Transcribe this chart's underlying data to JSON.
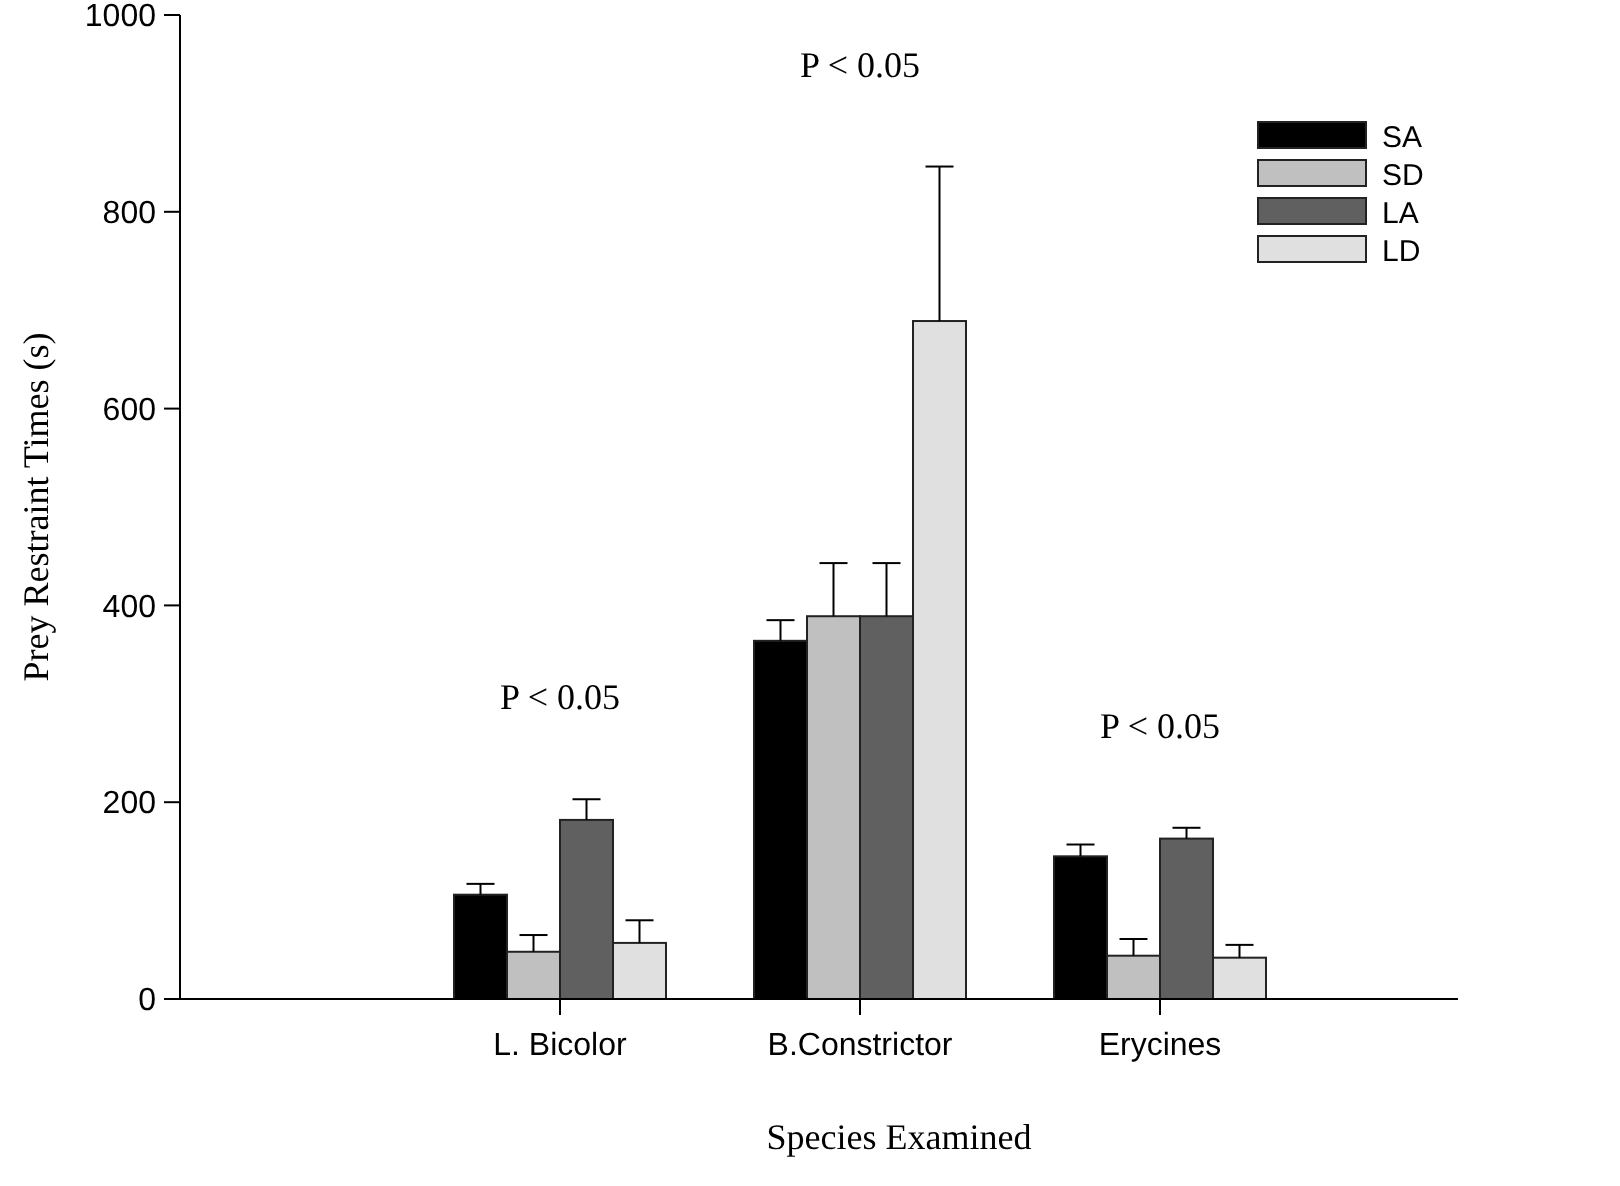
{
  "chart_data": {
    "type": "bar",
    "xlabel": "Species Examined",
    "ylabel": "Prey Restraint Times (s)",
    "categories": [
      "L. Bicolor",
      "B.Constrictor",
      "Erycines"
    ],
    "series": [
      {
        "name": "SA",
        "color": "#000000",
        "values": [
          106,
          364,
          145
        ],
        "errors": [
          [
            106,
            117
          ],
          [
            364,
            385
          ],
          [
            145,
            157
          ]
        ]
      },
      {
        "name": "SD",
        "color": "#c0c0c0",
        "values": [
          48,
          389,
          44
        ],
        "errors": [
          [
            48,
            65
          ],
          [
            389,
            443
          ],
          [
            44,
            61
          ]
        ]
      },
      {
        "name": "LA",
        "color": "#606060",
        "values": [
          182,
          389,
          163
        ],
        "errors": [
          [
            182,
            203
          ],
          [
            389,
            443
          ],
          [
            163,
            174
          ]
        ]
      },
      {
        "name": "LD",
        "color": "#e0e0e0",
        "values": [
          57,
          689,
          42
        ],
        "errors": [
          [
            57,
            80
          ],
          [
            689,
            846
          ],
          [
            42,
            55
          ]
        ]
      }
    ],
    "ylim": [
      0,
      1000
    ],
    "yticks": [
      0,
      200,
      400,
      600,
      800,
      1000
    ],
    "legend": "top right",
    "grid": false,
    "annotations": [
      "P < 0.05",
      "P < 0.05",
      "P < 0.05"
    ]
  }
}
